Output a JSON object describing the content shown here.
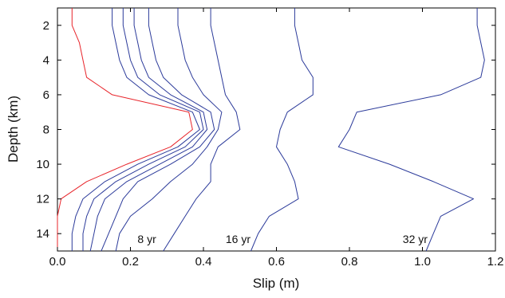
{
  "chart_data": {
    "type": "line",
    "xlabel": "Slip (m)",
    "ylabel": "Depth (km)",
    "xlim": [
      0.0,
      1.2
    ],
    "ylim": [
      1,
      15
    ],
    "y_inverted": true,
    "xticks": [
      "0.0",
      "0.2",
      "0.4",
      "0.6",
      "0.8",
      "1.0",
      "1.2"
    ],
    "xtick_values": [
      0.0,
      0.2,
      0.4,
      0.6,
      0.8,
      1.0,
      1.2
    ],
    "yticks": [
      "2",
      "4",
      "6",
      "8",
      "10",
      "12",
      "14"
    ],
    "ytick_values": [
      2,
      4,
      6,
      8,
      10,
      12,
      14
    ],
    "colors": {
      "coseismic": "#e8242a",
      "postseismic": "#2b3a9a",
      "axis": "#000000"
    },
    "annotations": [
      {
        "text": "8 yr",
        "x": 0.245,
        "y": 14.3
      },
      {
        "text": "16 yr",
        "x": 0.495,
        "y": 14.3
      },
      {
        "text": "32 yr",
        "x": 0.98,
        "y": 14.3
      }
    ],
    "series": [
      {
        "color": "#e8242a",
        "points": [
          [
            0.04,
            1
          ],
          [
            0.04,
            2
          ],
          [
            0.06,
            3
          ],
          [
            0.07,
            4
          ],
          [
            0.08,
            5
          ],
          [
            0.15,
            6
          ],
          [
            0.36,
            7
          ],
          [
            0.37,
            8
          ],
          [
            0.31,
            9
          ],
          [
            0.19,
            10
          ],
          [
            0.08,
            11
          ],
          [
            0.01,
            12
          ],
          [
            0.0,
            13
          ],
          [
            0.0,
            15
          ]
        ]
      },
      {
        "color": "#2b3a9a",
        "points": [
          [
            0.15,
            1
          ],
          [
            0.15,
            2
          ],
          [
            0.16,
            3
          ],
          [
            0.17,
            4
          ],
          [
            0.19,
            5
          ],
          [
            0.25,
            6
          ],
          [
            0.37,
            7
          ],
          [
            0.39,
            8
          ],
          [
            0.33,
            9
          ],
          [
            0.22,
            10
          ],
          [
            0.13,
            11
          ],
          [
            0.07,
            12
          ],
          [
            0.05,
            13
          ],
          [
            0.04,
            14
          ],
          [
            0.04,
            15
          ]
        ]
      },
      {
        "color": "#2b3a9a",
        "points": [
          [
            0.18,
            1
          ],
          [
            0.18,
            2
          ],
          [
            0.19,
            3
          ],
          [
            0.2,
            4
          ],
          [
            0.22,
            5
          ],
          [
            0.28,
            6
          ],
          [
            0.39,
            7
          ],
          [
            0.4,
            8
          ],
          [
            0.35,
            9
          ],
          [
            0.25,
            10
          ],
          [
            0.16,
            11
          ],
          [
            0.1,
            12
          ],
          [
            0.08,
            13
          ],
          [
            0.07,
            14
          ],
          [
            0.07,
            15
          ]
        ]
      },
      {
        "color": "#2b3a9a",
        "points": [
          [
            0.21,
            1
          ],
          [
            0.21,
            2
          ],
          [
            0.22,
            3
          ],
          [
            0.23,
            4
          ],
          [
            0.25,
            5
          ],
          [
            0.31,
            6
          ],
          [
            0.4,
            7
          ],
          [
            0.41,
            8
          ],
          [
            0.37,
            9
          ],
          [
            0.28,
            10
          ],
          [
            0.19,
            11
          ],
          [
            0.13,
            12
          ],
          [
            0.11,
            13
          ],
          [
            0.1,
            14
          ],
          [
            0.09,
            15
          ]
        ]
      },
      {
        "color": "#2b3a9a",
        "points": [
          [
            0.25,
            1
          ],
          [
            0.25,
            2
          ],
          [
            0.26,
            3
          ],
          [
            0.27,
            4
          ],
          [
            0.29,
            5
          ],
          [
            0.34,
            6
          ],
          [
            0.42,
            7
          ],
          [
            0.43,
            8
          ],
          [
            0.39,
            9
          ],
          [
            0.31,
            10
          ],
          [
            0.22,
            11
          ],
          [
            0.18,
            12
          ],
          [
            0.16,
            13
          ],
          [
            0.14,
            14
          ],
          [
            0.12,
            15
          ]
        ]
      },
      {
        "color": "#2b3a9a",
        "points": [
          [
            0.33,
            1
          ],
          [
            0.33,
            2
          ],
          [
            0.34,
            3
          ],
          [
            0.35,
            4
          ],
          [
            0.37,
            5
          ],
          [
            0.4,
            6
          ],
          [
            0.45,
            7
          ],
          [
            0.44,
            8
          ],
          [
            0.41,
            9
          ],
          [
            0.37,
            10
          ],
          [
            0.31,
            11
          ],
          [
            0.26,
            12
          ],
          [
            0.2,
            13
          ],
          [
            0.17,
            14
          ],
          [
            0.16,
            15
          ]
        ]
      },
      {
        "color": "#2b3a9a",
        "points": [
          [
            0.42,
            1
          ],
          [
            0.42,
            2
          ],
          [
            0.43,
            3
          ],
          [
            0.44,
            4
          ],
          [
            0.45,
            5
          ],
          [
            0.46,
            6
          ],
          [
            0.49,
            7
          ],
          [
            0.5,
            8
          ],
          [
            0.44,
            9
          ],
          [
            0.42,
            10
          ],
          [
            0.42,
            11
          ],
          [
            0.38,
            12
          ],
          [
            0.35,
            13
          ],
          [
            0.32,
            14
          ],
          [
            0.29,
            15
          ]
        ]
      },
      {
        "color": "#2b3a9a",
        "points": [
          [
            0.65,
            1
          ],
          [
            0.65,
            2
          ],
          [
            0.66,
            3
          ],
          [
            0.67,
            4
          ],
          [
            0.7,
            5
          ],
          [
            0.7,
            6
          ],
          [
            0.63,
            7
          ],
          [
            0.61,
            8
          ],
          [
            0.6,
            9
          ],
          [
            0.63,
            10
          ],
          [
            0.65,
            11
          ],
          [
            0.66,
            12
          ],
          [
            0.58,
            13
          ],
          [
            0.55,
            14
          ],
          [
            0.53,
            15
          ]
        ]
      },
      {
        "color": "#2b3a9a",
        "points": [
          [
            1.15,
            1
          ],
          [
            1.15,
            2
          ],
          [
            1.16,
            3
          ],
          [
            1.17,
            4
          ],
          [
            1.16,
            5
          ],
          [
            1.05,
            6
          ],
          [
            0.82,
            7
          ],
          [
            0.8,
            8
          ],
          [
            0.77,
            9
          ],
          [
            0.91,
            10
          ],
          [
            1.03,
            11
          ],
          [
            1.14,
            12
          ],
          [
            1.05,
            13
          ],
          [
            1.03,
            14
          ],
          [
            1.01,
            15
          ]
        ]
      }
    ]
  }
}
